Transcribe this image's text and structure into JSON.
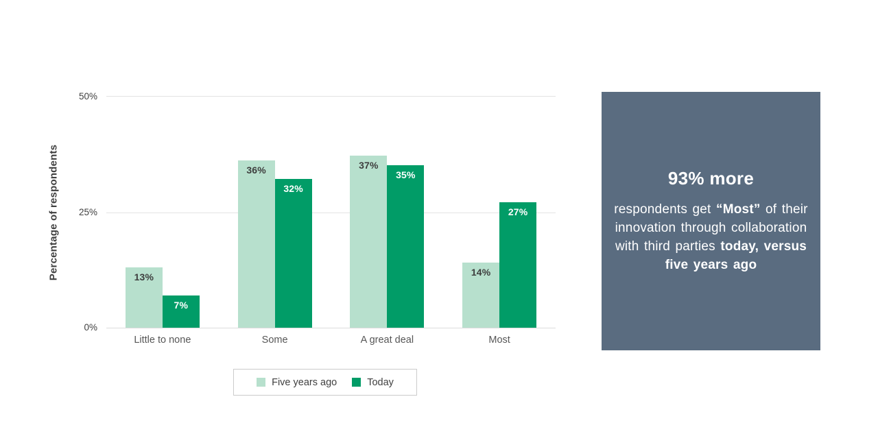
{
  "chart_data": {
    "type": "bar",
    "title": "",
    "categories": [
      "Little to none",
      "Some",
      "A great deal",
      "Most"
    ],
    "series": [
      {
        "name": "Five years ago",
        "color": "#b7e0cd",
        "label_color": "#3d3d3d",
        "values": [
          13,
          36,
          37,
          14
        ]
      },
      {
        "name": "Today",
        "color": "#019c67",
        "label_color": "#ffffff",
        "values": [
          7,
          32,
          35,
          27
        ]
      }
    ],
    "ylabel": "Percentage of respondents",
    "ylim": [
      0,
      50
    ],
    "yticks": [
      "0%",
      "25%",
      "50%"
    ],
    "value_label_format": "{v}%",
    "grid": true,
    "legend_position": "bottom"
  },
  "callout": {
    "title": "93% more",
    "body_segments": [
      {
        "text": "respondents get ",
        "bold": false
      },
      {
        "text": "“Most”",
        "bold": true
      },
      {
        "text": " of their innovation through collaboration with third parties ",
        "bold": false
      },
      {
        "text": "today, versus five years ago",
        "bold": true
      }
    ],
    "background": "#5a6c80",
    "text_color": "#ffffff"
  }
}
